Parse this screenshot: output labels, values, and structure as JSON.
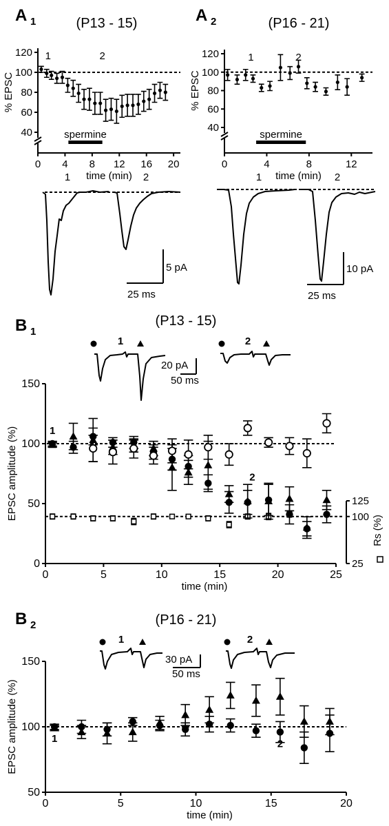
{
  "chart_data": [
    {
      "id": "A1",
      "type": "scatter",
      "panel_label": "A",
      "panel_sub": "1",
      "title": "(P13 - 15)",
      "ylabel": "% EPSC",
      "xlabel": "time (min)",
      "xlim": [
        0,
        21
      ],
      "ylim": [
        40,
        120
      ],
      "xticks": [
        0,
        4,
        8,
        12,
        16,
        20
      ],
      "yticks": [
        40,
        60,
        80,
        100,
        120
      ],
      "baseline": 100,
      "bar_label": "spermine",
      "bar_range": [
        4.5,
        9.5
      ],
      "markers": [
        {
          "label": "1",
          "x": 1.5
        },
        {
          "label": "2",
          "x": 9.5
        }
      ],
      "series": [
        {
          "x": [
            0.5,
            1.3,
            2,
            2.8,
            3.6,
            4.4,
            5.2,
            6,
            6.8,
            7.6,
            8.4,
            9.2,
            10,
            10.8,
            11.6,
            12.4,
            13.2,
            14,
            14.8,
            15.6,
            16.4,
            17.2,
            18,
            18.8
          ],
          "y": [
            103,
            99,
            97,
            94,
            95,
            87,
            84,
            79,
            73,
            73,
            69,
            69,
            62,
            63,
            61,
            66,
            67,
            67,
            68,
            71,
            73,
            79,
            82,
            80
          ],
          "err": [
            3,
            4,
            4,
            5,
            6,
            7,
            8,
            9,
            10,
            11,
            11,
            11,
            11,
            11,
            12,
            11,
            11,
            11,
            10,
            10,
            10,
            9,
            8,
            8
          ]
        }
      ],
      "scale_bar": {
        "y": "5 pA",
        "x": "25 ms"
      },
      "trace_labels": [
        "1",
        "2"
      ]
    },
    {
      "id": "A2",
      "type": "scatter",
      "panel_label": "A",
      "panel_sub": "2",
      "title": "(P16 - 21)",
      "ylabel": "% EPSC",
      "xlabel": "time (min)",
      "xlim": [
        0,
        14
      ],
      "ylim": [
        40,
        120
      ],
      "xticks": [
        0,
        4,
        8,
        12
      ],
      "yticks": [
        40,
        60,
        80,
        100,
        120
      ],
      "baseline": 100,
      "bar_label": "spermine",
      "bar_range": [
        3,
        7.7
      ],
      "markers": [
        {
          "label": "1",
          "x": 2.5
        },
        {
          "label": "2",
          "x": 7
        }
      ],
      "series": [
        {
          "x": [
            0.3,
            1.2,
            2,
            2.7,
            3.5,
            4.3,
            5.3,
            6.2,
            7,
            7.8,
            8.6,
            9.6,
            10.7,
            11.6,
            13
          ],
          "y": [
            97,
            92,
            97,
            93,
            83,
            85,
            105,
            99,
            106,
            88,
            84,
            79,
            89,
            84,
            94
          ],
          "err": [
            6,
            5,
            6,
            4,
            4,
            5,
            14,
            7,
            7,
            6,
            5,
            4,
            8,
            9,
            4
          ]
        }
      ],
      "scale_bar": {
        "y": "10 pA",
        "x": "25 ms"
      },
      "trace_labels": [
        "1",
        "2"
      ]
    },
    {
      "id": "B1",
      "type": "scatter",
      "panel_label": "B",
      "panel_sub": "1",
      "title": "(P13 - 15)",
      "ylabel": "EPSC amplitude (%)",
      "xlabel": "time (min)",
      "xlim": [
        0,
        25
      ],
      "ylim": [
        0,
        150
      ],
      "xticks": [
        0,
        5,
        10,
        15,
        20,
        25
      ],
      "yticks": [
        0,
        50,
        100,
        150
      ],
      "baseline": 100,
      "markers": [
        {
          "label": "1",
          "x": 0.6,
          "y": 100
        },
        {
          "label": "2",
          "x": 17.8,
          "y": 60
        }
      ],
      "series": [
        {
          "marker": "triangle",
          "x": [
            0.6,
            2.4,
            4.1,
            5.8,
            7.6,
            9.3,
            10.9,
            12.3,
            14,
            15.8,
            17.4,
            19.2,
            21,
            22.5,
            24.2
          ],
          "y": [
            99,
            106,
            103,
            97,
            98,
            96,
            80,
            76,
            82,
            58,
            52,
            52,
            54,
            30,
            53
          ],
          "err": [
            2,
            11,
            18,
            6,
            5,
            6,
            19,
            10,
            20,
            7,
            14,
            15,
            10,
            9,
            8
          ]
        },
        {
          "marker": "circle-filled",
          "x": [
            0.6,
            2.4,
            4.1,
            5.8,
            7.6,
            9.3,
            10.9,
            12.3,
            14,
            15.8,
            17.4,
            19.2,
            21,
            22.5,
            24.2
          ],
          "y": [
            100,
            97,
            106,
            101,
            101,
            93,
            87,
            81,
            67,
            51,
            51,
            53,
            41,
            29,
            41
          ],
          "err": [
            2,
            5,
            7,
            4,
            5,
            6,
            9,
            9,
            7,
            9,
            10,
            13,
            8,
            6,
            7
          ]
        },
        {
          "marker": "circle-open",
          "x": [
            4.1,
            5.8,
            7.6,
            9.3,
            10.9,
            12.3,
            14,
            15.8,
            17.4,
            19.2,
            21,
            22.5,
            24.2
          ],
          "y": [
            96,
            93,
            96,
            90,
            94,
            91,
            97,
            91,
            113,
            101,
            98,
            92,
            117
          ],
          "err": [
            11,
            10,
            8,
            7,
            10,
            12,
            10,
            9,
            6,
            4,
            7,
            12,
            8
          ]
        }
      ],
      "rs_series": {
        "name": "Rs (%)",
        "ylim": [
          25,
          125
        ],
        "yticks": [
          25,
          100,
          125
        ],
        "x": [
          0.6,
          2.4,
          4.1,
          5.8,
          7.6,
          9.3,
          10.9,
          12.3,
          14,
          15.8,
          17.4,
          19.2,
          21
        ],
        "y": [
          100,
          100,
          97,
          97,
          92,
          100,
          100,
          100,
          97,
          87,
          100,
          100,
          104
        ],
        "err": [
          4,
          4,
          4,
          4,
          5,
          4,
          3,
          3,
          4,
          5,
          4,
          5,
          5
        ]
      },
      "scale_bar": {
        "y": "20 pA",
        "x": "50 ms"
      },
      "trace_labels": [
        "1",
        "2"
      ]
    },
    {
      "id": "B2",
      "type": "scatter",
      "panel_label": "B",
      "panel_sub": "2",
      "title": "(P16 - 21)",
      "ylabel": "EPSC amplitude (%)",
      "xlabel": "time (min)",
      "xlim": [
        0,
        20
      ],
      "ylim": [
        50,
        150
      ],
      "xticks": [
        0,
        5,
        10,
        15,
        20
      ],
      "yticks": [
        50,
        100,
        150
      ],
      "baseline": 100,
      "markers": [
        {
          "label": "1",
          "x": 0.6,
          "y": 100
        },
        {
          "label": "2",
          "x": 15.6,
          "y": 97
        }
      ],
      "series": [
        {
          "marker": "triangle",
          "x": [
            0.6,
            2.4,
            4.1,
            5.8,
            7.6,
            9.3,
            10.9,
            12.3,
            14,
            15.6,
            17.2,
            18.9
          ],
          "y": [
            99,
            96,
            95,
            96,
            103,
            109,
            113,
            124,
            120,
            123,
            104,
            104
          ],
          "err": [
            2,
            5,
            8,
            7,
            5,
            8,
            10,
            10,
            12,
            14,
            12,
            10
          ],
          "err_color": "#555555"
        },
        {
          "marker": "circle-filled",
          "x": [
            0.6,
            2.4,
            4.1,
            5.8,
            7.6,
            9.3,
            10.9,
            12.3,
            14,
            15.6,
            17.2,
            18.9
          ],
          "y": [
            100,
            100,
            98,
            104,
            101,
            98,
            102,
            101,
            97,
            96,
            84,
            95
          ],
          "err": [
            2,
            5,
            5,
            3,
            4,
            5,
            6,
            5,
            5,
            8,
            12,
            14
          ]
        }
      ],
      "scale_bar": {
        "y": "30 pA",
        "x": "50 ms"
      },
      "trace_labels": [
        "1",
        "2"
      ]
    }
  ]
}
